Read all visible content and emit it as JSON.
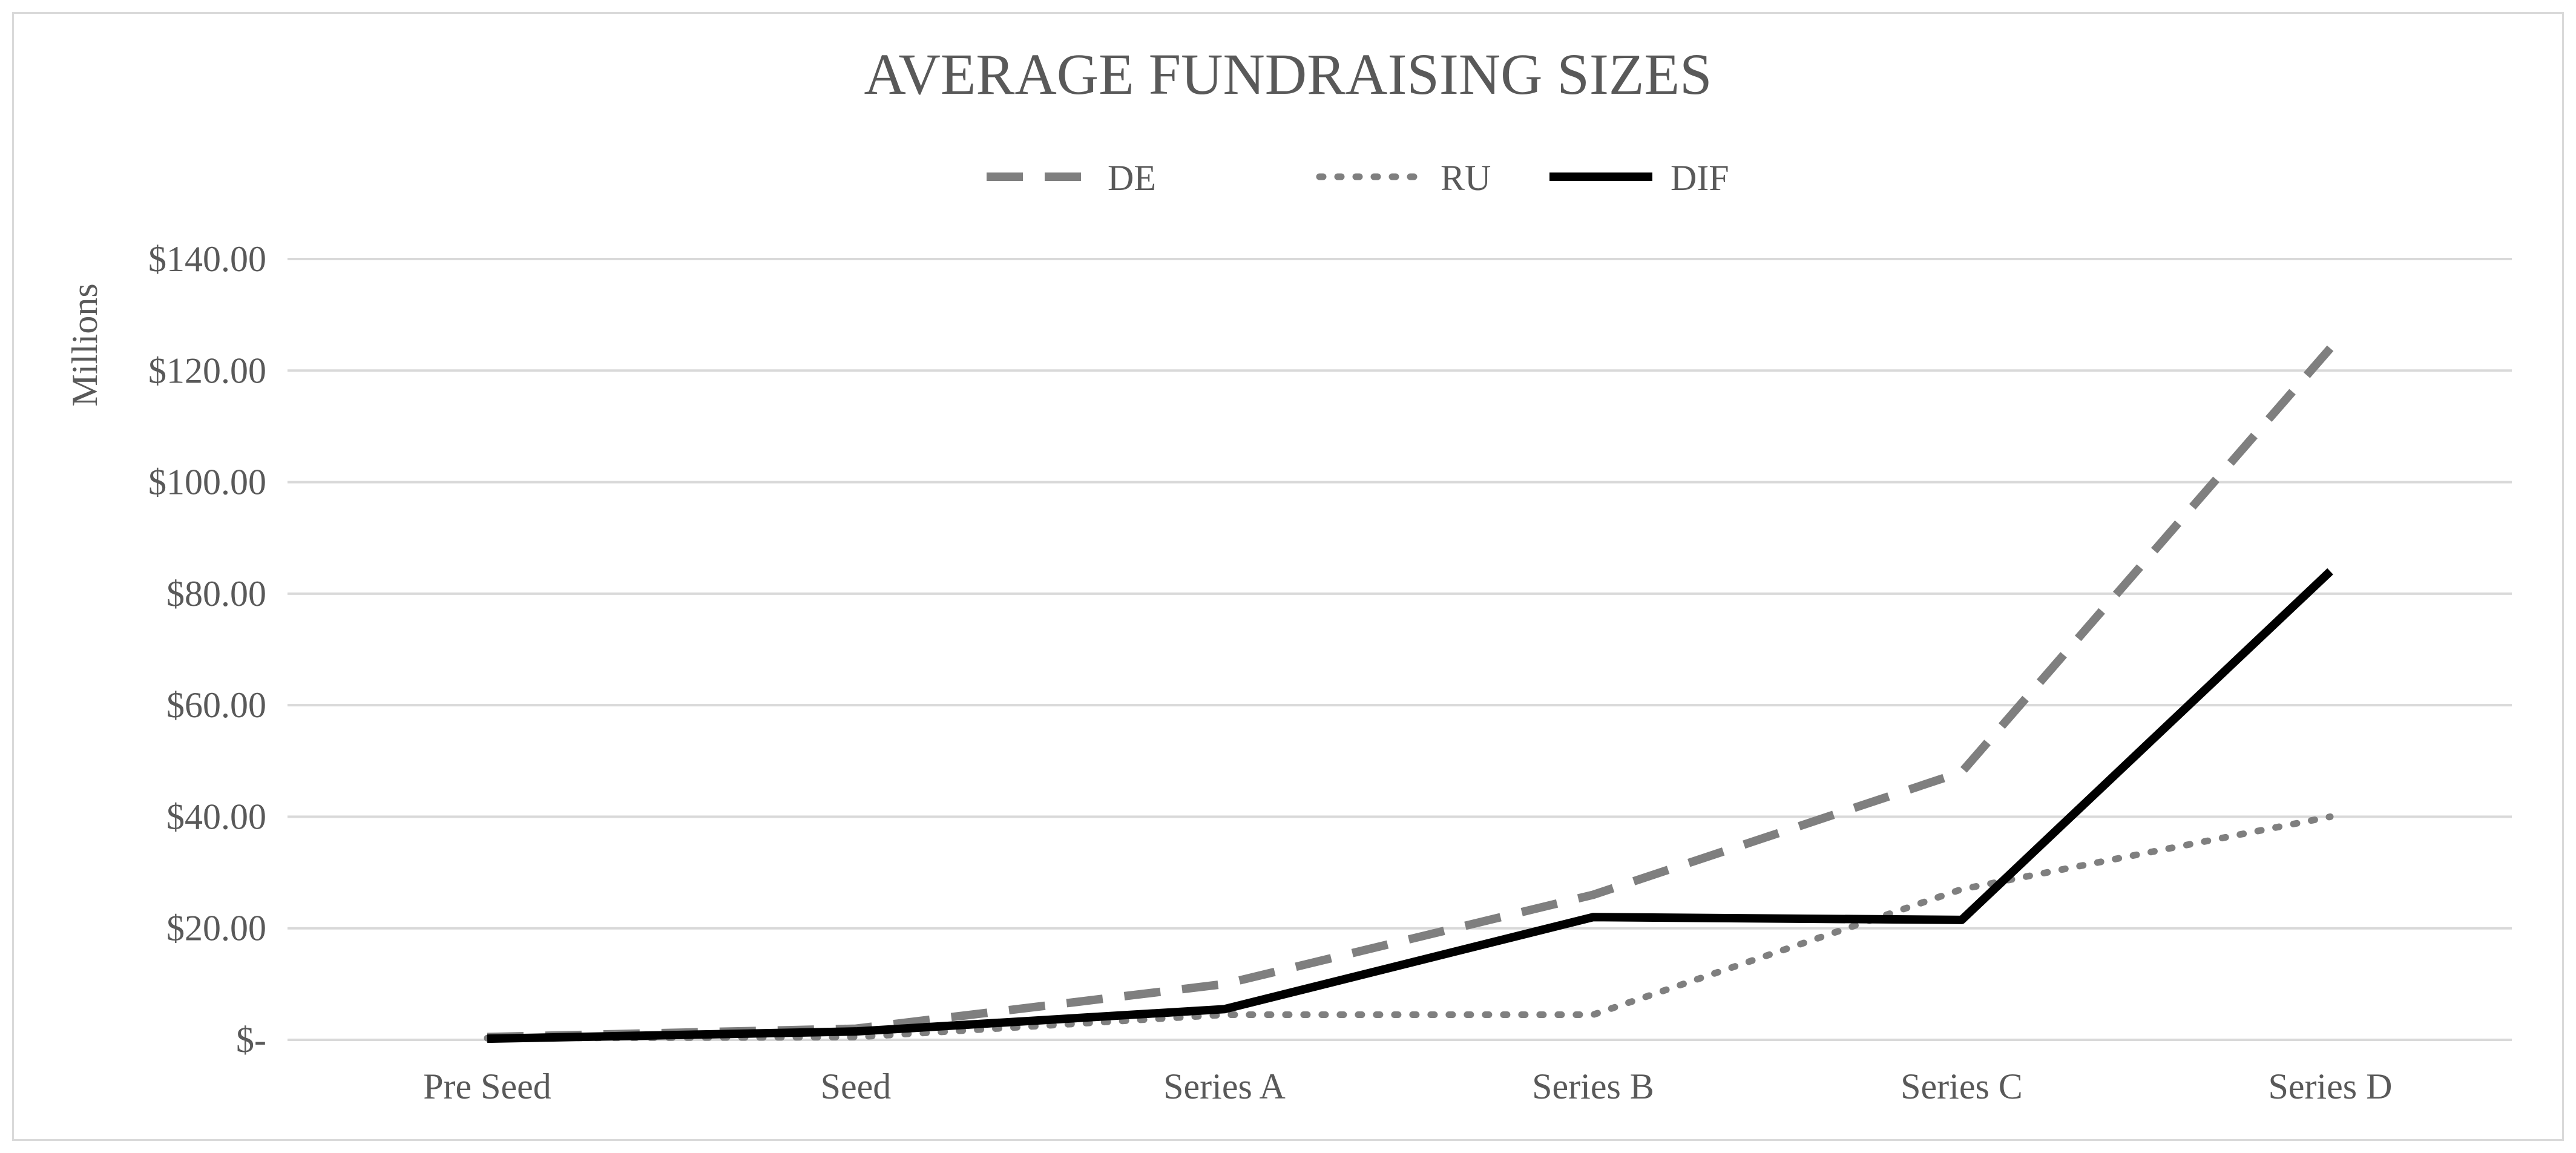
{
  "chart_data": {
    "type": "line",
    "title": "AVERAGE FUNDRAISING SIZES",
    "xlabel": "",
    "ylabel": "Millions",
    "categories": [
      "Pre Seed",
      "Seed",
      "Series A",
      "Series B",
      "Series C",
      "Series D"
    ],
    "ylim": [
      0,
      140
    ],
    "yticks": [
      0,
      20,
      40,
      60,
      80,
      100,
      120,
      140
    ],
    "ytick_labels": [
      "$-",
      "$20.00",
      "$40.00",
      "$60.00",
      "$80.00",
      "$100.00",
      "$120.00",
      "$140.00"
    ],
    "grid": true,
    "legend_position": "top-center",
    "series": [
      {
        "name": "DE",
        "style": "dashed",
        "color": "#7f7f7f",
        "values": [
          0.5,
          2,
          10,
          26,
          48,
          124
        ]
      },
      {
        "name": "RU",
        "style": "dotted",
        "color": "#7f7f7f",
        "values": [
          0.3,
          0.5,
          4.5,
          4.5,
          27,
          40
        ]
      },
      {
        "name": "DIF",
        "style": "solid",
        "color": "#000000",
        "values": [
          0.2,
          1.5,
          5.5,
          22,
          21.5,
          84
        ]
      }
    ]
  }
}
